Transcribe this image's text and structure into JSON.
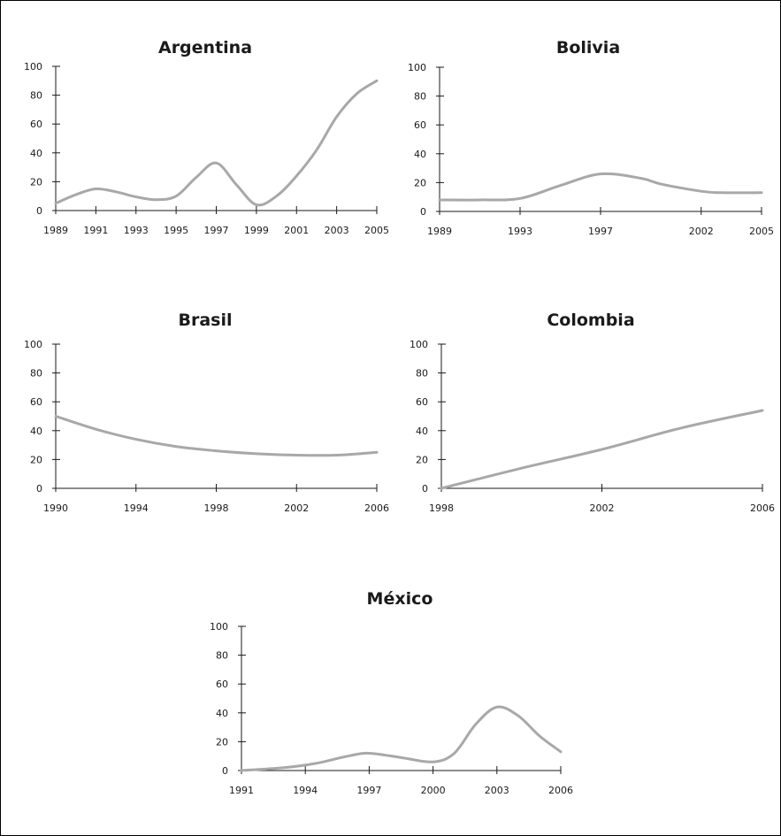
{
  "chart_data": [
    {
      "type": "line",
      "title": "Argentina",
      "xlabel": "",
      "ylabel": "",
      "ylim": [
        0,
        100
      ],
      "yticks": [
        0,
        20,
        40,
        60,
        80,
        100
      ],
      "xticks": [
        "1989",
        "1991",
        "1993",
        "1995",
        "1997",
        "1999",
        "2001",
        "2003",
        "2005"
      ],
      "xlim": [
        1989,
        2005
      ],
      "series": [
        {
          "color": "#a8a8a8",
          "x": [
            1989,
            1990,
            1991,
            1992,
            1993,
            1994,
            1995,
            1996,
            1997,
            1998,
            1999,
            2000,
            2001,
            2002,
            2003,
            2004,
            2005
          ],
          "y": [
            5,
            11,
            15,
            13,
            9.5,
            7.5,
            10,
            23,
            33,
            18,
            4,
            10,
            24,
            42,
            65,
            81,
            90
          ]
        }
      ]
    },
    {
      "type": "line",
      "title": "Bolivia",
      "xlabel": "",
      "ylabel": "",
      "ylim": [
        0,
        100
      ],
      "yticks": [
        0,
        20,
        40,
        60,
        80,
        100
      ],
      "xticks": [
        "1989",
        "1993",
        "1997",
        "2002",
        "2005"
      ],
      "xlim": [
        1989,
        2005
      ],
      "series": [
        {
          "color": "#a8a8a8",
          "x": [
            1989,
            1991,
            1993,
            1995,
            1997,
            1999,
            2000,
            2002,
            2003,
            2005
          ],
          "y": [
            8,
            8,
            9,
            18,
            26,
            23,
            19,
            14,
            13,
            13
          ]
        }
      ]
    },
    {
      "type": "line",
      "title": "Brasil",
      "xlabel": "",
      "ylabel": "",
      "ylim": [
        0,
        100
      ],
      "yticks": [
        0,
        20,
        40,
        60,
        80,
        100
      ],
      "xticks": [
        "1990",
        "1994",
        "1998",
        "2002",
        "2006"
      ],
      "xlim": [
        1990,
        2006
      ],
      "series": [
        {
          "color": "#a8a8a8",
          "x": [
            1990,
            1992,
            1994,
            1996,
            1998,
            2000,
            2002,
            2004,
            2006
          ],
          "y": [
            50,
            41,
            34,
            29,
            26,
            24,
            23,
            23,
            25
          ]
        }
      ]
    },
    {
      "type": "line",
      "title": "Colombia",
      "xlabel": "",
      "ylabel": "",
      "ylim": [
        0,
        100
      ],
      "yticks": [
        0,
        20,
        40,
        60,
        80,
        100
      ],
      "xticks": [
        "1998",
        "2002",
        "2006"
      ],
      "xlim": [
        1998,
        2006
      ],
      "series": [
        {
          "color": "#a8a8a8",
          "x": [
            1998,
            2000,
            2002,
            2004,
            2006
          ],
          "y": [
            0,
            14,
            27,
            42,
            54
          ]
        }
      ]
    },
    {
      "type": "line",
      "title": "México",
      "xlabel": "",
      "ylabel": "",
      "ylim": [
        0,
        100
      ],
      "yticks": [
        0,
        20,
        40,
        60,
        80,
        100
      ],
      "xticks": [
        "1991",
        "1994",
        "1997",
        "2000",
        "2003",
        "2006"
      ],
      "xlim": [
        1991,
        2006
      ],
      "series": [
        {
          "color": "#a8a8a8",
          "x": [
            1991,
            1993,
            1994.5,
            1996,
            1997,
            1998.5,
            2000,
            2001,
            2002,
            2003,
            2004,
            2005,
            2006
          ],
          "y": [
            0,
            2,
            5,
            10,
            12,
            9,
            6,
            12,
            32,
            44,
            38,
            24,
            13
          ]
        }
      ]
    }
  ]
}
